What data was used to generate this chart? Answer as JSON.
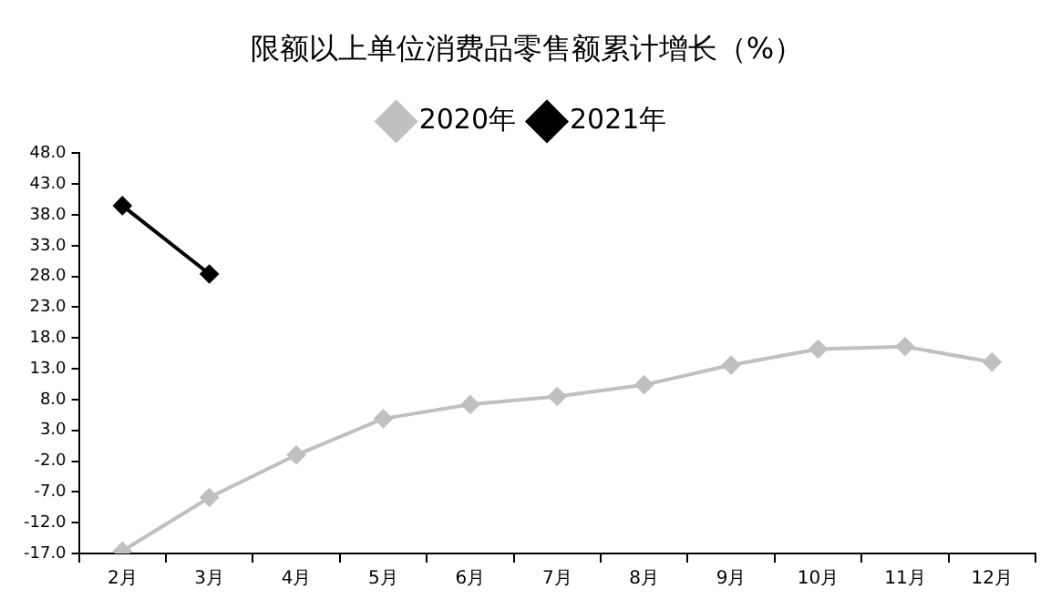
{
  "chart_data": {
    "type": "line",
    "title": "限额以上单位消费品零售额累计增长（%）",
    "categories": [
      "2月",
      "3月",
      "4月",
      "5月",
      "6月",
      "7月",
      "8月",
      "9月",
      "10月",
      "11月",
      "12月"
    ],
    "series": [
      {
        "name": "2020年",
        "color": "#c0c0c0",
        "values": [
          -16.6,
          -7.9,
          -1.0,
          4.9,
          7.2,
          8.5,
          10.4,
          13.6,
          16.2,
          16.6,
          14.1
        ]
      },
      {
        "name": "2021年",
        "color": "#000000",
        "values": [
          39.5,
          28.4,
          null,
          null,
          null,
          null,
          null,
          null,
          null,
          null,
          null
        ]
      }
    ],
    "ylim": [
      -17,
      48
    ],
    "yticks": [
      {
        "value": -17,
        "label": "-17.0"
      },
      {
        "value": -12,
        "label": "-12.0"
      },
      {
        "value": -7,
        "label": "-7.0"
      },
      {
        "value": -2,
        "label": "-2.0"
      },
      {
        "value": 3,
        "label": "3.0"
      },
      {
        "value": 8,
        "label": "8.0"
      },
      {
        "value": 13,
        "label": "13.0"
      },
      {
        "value": 18,
        "label": "18.0"
      },
      {
        "value": 23,
        "label": "23.0"
      },
      {
        "value": 28,
        "label": "28.0"
      },
      {
        "value": 33,
        "label": "33.0"
      },
      {
        "value": 38,
        "label": "38.0"
      },
      {
        "value": 43,
        "label": "43.0"
      },
      {
        "value": 48,
        "label": "48.0"
      }
    ],
    "grid": false,
    "legend": "top",
    "marker": "diamond",
    "line_style": "solid"
  }
}
